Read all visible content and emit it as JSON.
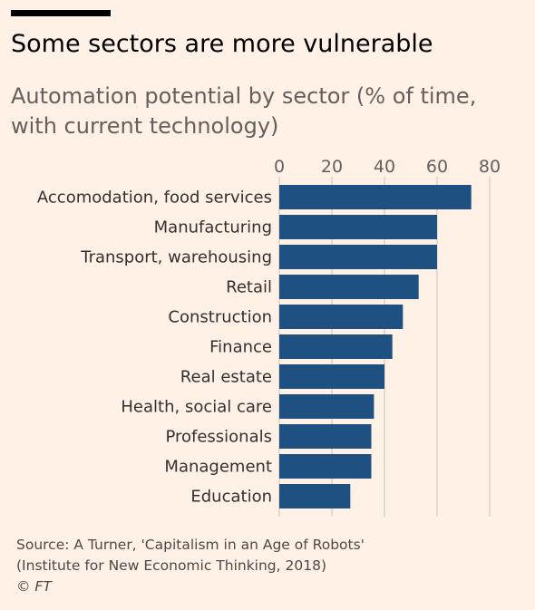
{
  "title": "Some sectors are more vulnerable",
  "subtitle": "Automation potential by sector (% of time, with current technology)",
  "source_line1": "Source: A Turner, 'Capitalism in an Age of Robots'",
  "source_line2": "(Institute for New Economic Thinking, 2018)",
  "copyright": "© FT",
  "colors": {
    "background": "#fff1e5",
    "bar": "#1f5082",
    "gridline": "#ccc1b7",
    "text": "#33302e"
  },
  "chart_data": {
    "type": "bar",
    "orientation": "horizontal",
    "categories": [
      "Accomodation, food services",
      "Manufacturing",
      "Transport, warehousing",
      "Retail",
      "Construction",
      "Finance",
      "Real estate",
      "Health, social care",
      "Professionals",
      "Management",
      "Education"
    ],
    "values": [
      73,
      60,
      60,
      53,
      47,
      43,
      40,
      36,
      35,
      35,
      27
    ],
    "xticks": [
      0,
      20,
      40,
      60,
      80
    ],
    "xlim": [
      0,
      80
    ],
    "xaxis_position": "top",
    "grid": true,
    "legend": "none"
  }
}
